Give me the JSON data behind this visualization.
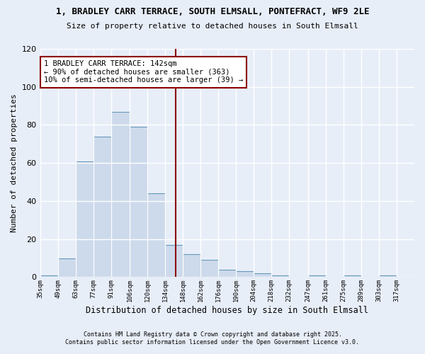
{
  "title_line1": "1, BRADLEY CARR TERRACE, SOUTH ELMSALL, PONTEFRACT, WF9 2LE",
  "title_line2": "Size of property relative to detached houses in South Elmsall",
  "xlabel": "Distribution of detached houses by size in South Elmsall",
  "ylabel": "Number of detached properties",
  "bar_edges": [
    35,
    49,
    63,
    77,
    91,
    106,
    120,
    134,
    148,
    162,
    176,
    190,
    204,
    218,
    232,
    247,
    261,
    275,
    289,
    303,
    317
  ],
  "bar_heights": [
    1,
    10,
    61,
    74,
    87,
    79,
    44,
    17,
    12,
    9,
    4,
    3,
    2,
    1,
    0,
    1,
    0,
    1,
    0,
    1
  ],
  "bar_color": "#cddaeb",
  "bar_edge_color": "#6699bb",
  "vline_x": 142,
  "vline_color": "#8b0000",
  "annotation_text": "1 BRADLEY CARR TERRACE: 142sqm\n← 90% of detached houses are smaller (363)\n10% of semi-detached houses are larger (39) →",
  "annotation_box_color": "white",
  "annotation_box_edge_color": "#8b0000",
  "ylim": [
    0,
    120
  ],
  "yticks": [
    0,
    20,
    40,
    60,
    80,
    100,
    120
  ],
  "tick_labels": [
    "35sqm",
    "49sqm",
    "63sqm",
    "77sqm",
    "91sqm",
    "106sqm",
    "120sqm",
    "134sqm",
    "148sqm",
    "162sqm",
    "176sqm",
    "190sqm",
    "204sqm",
    "218sqm",
    "232sqm",
    "247sqm",
    "261sqm",
    "275sqm",
    "289sqm",
    "303sqm",
    "317sqm"
  ],
  "background_color": "#e8eef8",
  "grid_color": "#ffffff",
  "footnote_line1": "Contains HM Land Registry data © Crown copyright and database right 2025.",
  "footnote_line2": "Contains public sector information licensed under the Open Government Licence v3.0."
}
